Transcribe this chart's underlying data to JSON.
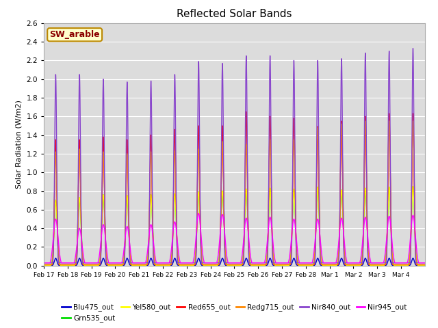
{
  "title": "Reflected Solar Bands",
  "ylabel": "Solar Radiation (W/m2)",
  "annotation": "SW_arable",
  "ylim": [
    0,
    2.6
  ],
  "background_color": "#ffffff",
  "plot_bg_color": "#dcdcdc",
  "series": {
    "Blu475_out": {
      "color": "#0000cc",
      "lw": 1.0
    },
    "Grn535_out": {
      "color": "#00dd00",
      "lw": 1.0
    },
    "Yel580_out": {
      "color": "#ffff00",
      "lw": 1.0
    },
    "Red655_out": {
      "color": "#ff0000",
      "lw": 1.0
    },
    "Redg715_out": {
      "color": "#ff8800",
      "lw": 1.0
    },
    "Nir840_out": {
      "color": "#8844cc",
      "lw": 1.0
    },
    "Nir945_out": {
      "color": "#ff00ff",
      "lw": 1.0
    }
  },
  "n_days": 16,
  "spd": 288,
  "peak_values": {
    "Blu475_out": [
      0.08,
      0.08,
      0.08,
      0.08,
      0.08,
      0.08,
      0.08,
      0.08,
      0.08,
      0.08,
      0.08,
      0.08,
      0.08,
      0.08,
      0.08,
      0.08
    ],
    "Grn535_out": [
      0.7,
      0.73,
      0.76,
      0.75,
      0.76,
      0.77,
      0.79,
      0.8,
      0.82,
      0.83,
      0.82,
      0.84,
      0.81,
      0.83,
      0.84,
      0.85
    ],
    "Yel580_out": [
      0.7,
      0.73,
      0.76,
      0.75,
      0.76,
      0.77,
      0.79,
      0.8,
      0.82,
      0.83,
      0.82,
      0.84,
      0.81,
      0.83,
      0.84,
      0.85
    ],
    "Red655_out": [
      1.35,
      1.35,
      1.38,
      1.35,
      1.4,
      1.46,
      1.5,
      1.5,
      1.65,
      1.6,
      1.58,
      1.49,
      1.55,
      1.6,
      1.63,
      1.63
    ],
    "Redg715_out": [
      1.22,
      1.25,
      1.22,
      1.2,
      1.22,
      1.23,
      1.25,
      1.33,
      1.3,
      1.35,
      1.35,
      1.48,
      1.52,
      1.55,
      1.55,
      1.55
    ],
    "Nir840_out": [
      2.05,
      2.05,
      2.0,
      1.97,
      1.98,
      2.05,
      2.19,
      2.17,
      2.25,
      2.25,
      2.2,
      2.2,
      2.22,
      2.28,
      2.3,
      2.33
    ],
    "Nir945_out": [
      0.5,
      0.4,
      0.44,
      0.42,
      0.44,
      0.47,
      0.56,
      0.55,
      0.51,
      0.52,
      0.5,
      0.5,
      0.51,
      0.52,
      0.53,
      0.54
    ]
  },
  "widths": {
    "Blu475_out": 0.055,
    "Grn535_out": 0.065,
    "Yel580_out": 0.062,
    "Red655_out": 0.048,
    "Redg715_out": 0.052,
    "Nir840_out": 0.042,
    "Nir945_out": 0.1
  },
  "bases": {
    "Blu475_out": 0.0,
    "Grn535_out": 0.0,
    "Yel580_out": 0.0,
    "Red655_out": 0.01,
    "Redg715_out": 0.01,
    "Nir840_out": 0.03,
    "Nir945_out": 0.03
  },
  "xtick_labels": [
    "Feb 17",
    "Feb 18",
    "Feb 19",
    "Feb 20",
    "Feb 21",
    "Feb 22",
    "Feb 23",
    "Feb 24",
    "Feb 25",
    "Feb 26",
    "Feb 27",
    "Feb 28",
    "Mar 1",
    "Mar 2",
    "Mar 3",
    "Mar 4"
  ],
  "legend_order": [
    "Blu475_out",
    "Grn535_out",
    "Yel580_out",
    "Red655_out",
    "Redg715_out",
    "Nir840_out",
    "Nir945_out"
  ]
}
